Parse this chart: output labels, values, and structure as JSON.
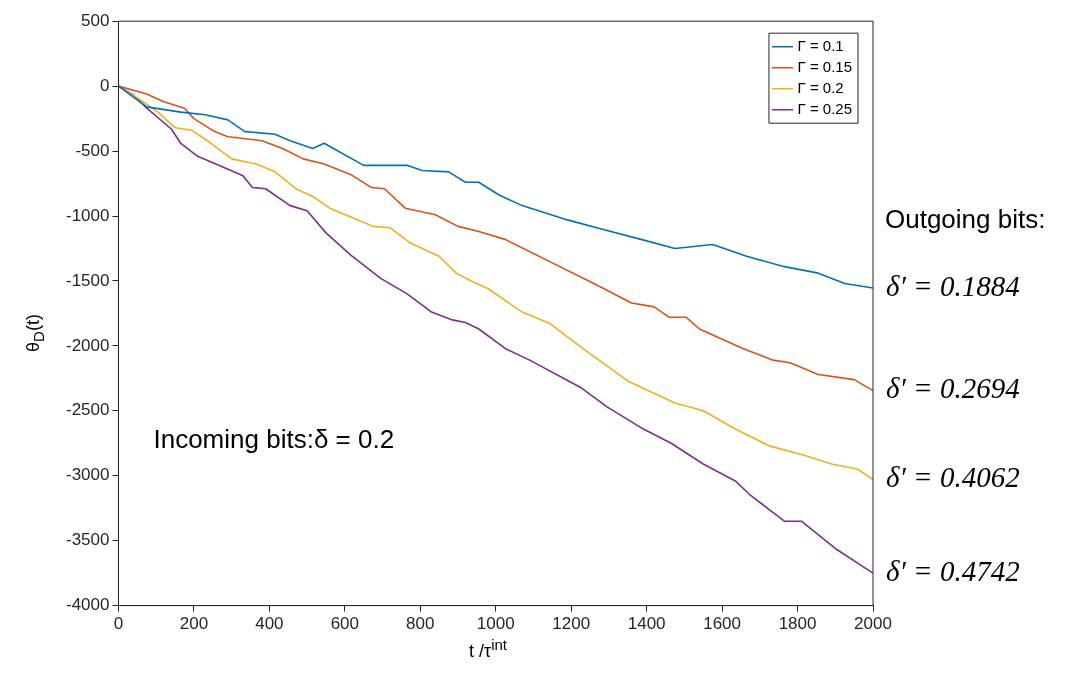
{
  "chart_data": {
    "type": "line",
    "xlabel": "t /τ$^{int}$",
    "ylabel": "θ$_{D}$(t)",
    "xlim": [
      0,
      2000
    ],
    "xticks": [
      0,
      200,
      400,
      600,
      800,
      1000,
      1200,
      1400,
      1600,
      1800,
      2000
    ],
    "ylim": [
      -4000,
      500
    ],
    "yticks": [
      -4000,
      -3500,
      -3000,
      -2500,
      -2000,
      -1500,
      -1000,
      -500,
      0,
      500
    ],
    "grid": false,
    "legend": "top right",
    "series": [
      {
        "name": "Γ = 0.1",
        "color": "#0072bd",
        "x": [
          0,
          75,
          165,
          230,
          290,
          335,
          415,
          455,
          515,
          545,
          650,
          765,
          805,
          875,
          920,
          955,
          1010,
          1070,
          1190,
          1280,
          1385,
          1475,
          1575,
          1665,
          1765,
          1855,
          1925,
          2000
        ],
        "values": [
          0,
          -160,
          -200,
          -220,
          -260,
          -350,
          -370,
          -420,
          -480,
          -440,
          -610,
          -610,
          -650,
          -660,
          -740,
          -740,
          -840,
          -920,
          -1030,
          -1100,
          -1180,
          -1250,
          -1220,
          -1310,
          -1390,
          -1440,
          -1520,
          -1555
        ]
      },
      {
        "name": "Γ = 0.15",
        "color": "#d95319",
        "x": [
          0,
          75,
          120,
          175,
          200,
          255,
          290,
          380,
          435,
          490,
          545,
          615,
          670,
          705,
          760,
          840,
          900,
          955,
          1025,
          1135,
          1260,
          1360,
          1420,
          1460,
          1505,
          1540,
          1655,
          1735,
          1780,
          1855,
          1950,
          2000
        ],
        "values": [
          0,
          -60,
          -120,
          -170,
          -250,
          -350,
          -390,
          -420,
          -480,
          -560,
          -600,
          -680,
          -780,
          -790,
          -940,
          -990,
          -1080,
          -1120,
          -1180,
          -1340,
          -1520,
          -1670,
          -1700,
          -1780,
          -1780,
          -1870,
          -2020,
          -2110,
          -2130,
          -2220,
          -2260,
          -2345
        ]
      },
      {
        "name": "Γ = 0.2",
        "color": "#edb120",
        "x": [
          0,
          60,
          105,
          150,
          195,
          245,
          300,
          365,
          415,
          470,
          515,
          560,
          635,
          675,
          720,
          775,
          850,
          895,
          935,
          980,
          1070,
          1145,
          1190,
          1245,
          1350,
          1475,
          1550,
          1635,
          1725,
          1815,
          1890,
          1960,
          2000
        ],
        "values": [
          0,
          -110,
          -200,
          -320,
          -340,
          -440,
          -560,
          -600,
          -660,
          -790,
          -850,
          -940,
          -1030,
          -1080,
          -1090,
          -1210,
          -1310,
          -1440,
          -1500,
          -1560,
          -1740,
          -1830,
          -1930,
          -2050,
          -2270,
          -2440,
          -2500,
          -2640,
          -2770,
          -2840,
          -2910,
          -2950,
          -3030
        ]
      },
      {
        "name": "Γ = 0.25",
        "color": "#7e2f8e",
        "x": [
          0,
          40,
          75,
          140,
          165,
          210,
          275,
          330,
          355,
          390,
          455,
          500,
          550,
          615,
          695,
          765,
          830,
          885,
          920,
          955,
          1025,
          1090,
          1225,
          1295,
          1385,
          1465,
          1550,
          1635,
          1675,
          1765,
          1810,
          1900,
          2000
        ],
        "values": [
          0,
          -70,
          -170,
          -330,
          -440,
          -540,
          -620,
          -690,
          -780,
          -790,
          -920,
          -960,
          -1130,
          -1300,
          -1480,
          -1600,
          -1740,
          -1800,
          -1820,
          -1870,
          -2020,
          -2110,
          -2320,
          -2470,
          -2630,
          -2750,
          -2910,
          -3040,
          -3150,
          -3350,
          -3350,
          -3560,
          -3750
        ]
      }
    ],
    "annotations": [
      "Outgoing bits:",
      "Incoming bits:δ = 0.2",
      "δ′ = 0.1884",
      "δ′ = 0.2694",
      "δ′ = 0.4062",
      "δ′ = 0.4742"
    ]
  }
}
